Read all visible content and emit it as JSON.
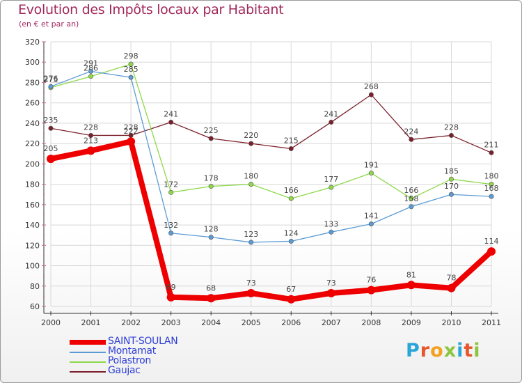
{
  "title": "Evolution des Impôts locaux par Habitant",
  "subtitle": "(en € et par an)",
  "brand": {
    "text": "Proxiti"
  },
  "colors": {
    "title": "#a0285a",
    "axis": "#333333",
    "grid": "#d8d8d8",
    "legend_text": "#2e3fd6"
  },
  "chart_data": {
    "type": "line",
    "title": "Evolution des Impôts locaux par Habitant",
    "subtitle": "(en € et par an)",
    "xlabel": "",
    "ylabel": "",
    "x": [
      "2000",
      "2001",
      "2002",
      "2003",
      "2004",
      "2005",
      "2006",
      "2007",
      "2008",
      "2009",
      "2010",
      "2011"
    ],
    "ylim": [
      60,
      320
    ],
    "yticks": [
      60,
      80,
      100,
      120,
      140,
      160,
      180,
      200,
      220,
      240,
      260,
      280,
      300,
      320
    ],
    "grid": true,
    "legend_position": "bottom-left",
    "series": [
      {
        "name": "Gaujac",
        "color": "#7a1e2a",
        "values": [
          235,
          228,
          228,
          241,
          225,
          220,
          215,
          241,
          268,
          224,
          228,
          211
        ]
      },
      {
        "name": "Polastron",
        "color": "#8ed84a",
        "values": [
          275,
          286,
          298,
          172,
          178,
          180,
          166,
          177,
          191,
          166,
          185,
          180
        ]
      },
      {
        "name": "Montamat",
        "color": "#5b9bd5",
        "values": [
          276,
          291,
          285,
          132,
          128,
          123,
          124,
          133,
          141,
          158,
          170,
          168
        ]
      },
      {
        "name": "SAINT-SOULAN",
        "color": "#ee0000",
        "values": [
          205,
          213,
          222,
          69,
          68,
          73,
          67,
          73,
          76,
          81,
          78,
          114
        ]
      }
    ],
    "legend": [
      "SAINT-SOULAN",
      "Montamat",
      "Polastron",
      "Gaujac"
    ]
  }
}
